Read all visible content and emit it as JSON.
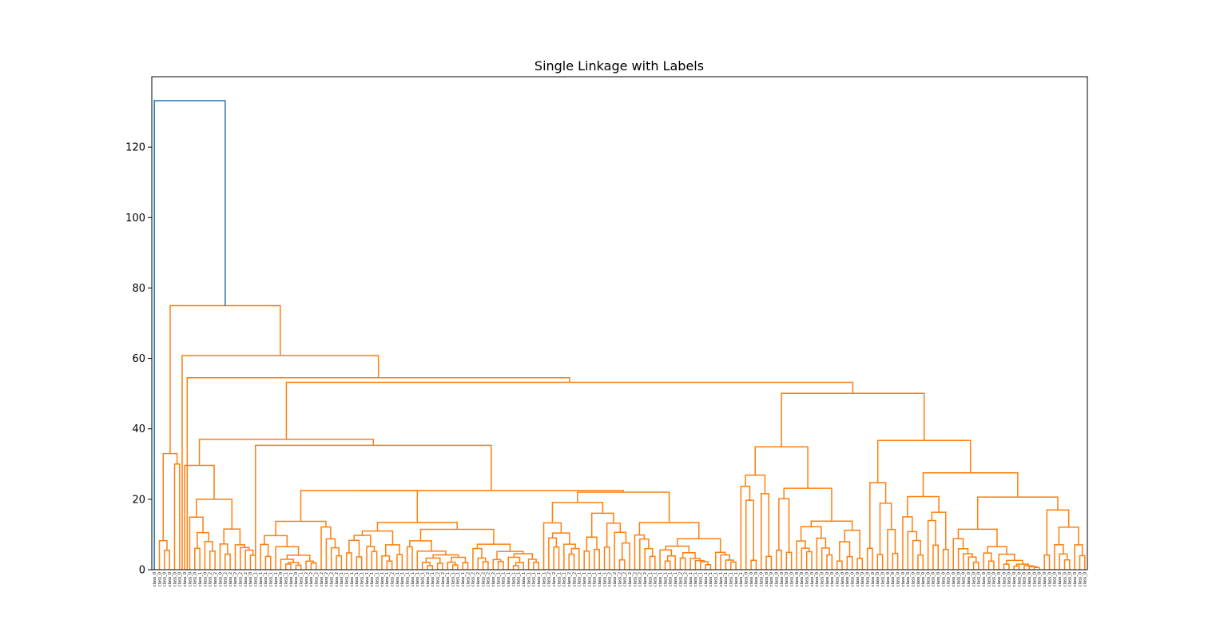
{
  "chart_data": {
    "type": "dendrogram",
    "title": "Single Linkage with Labels",
    "xlabel": "",
    "ylabel": "",
    "ylim": [
      0,
      140
    ],
    "yticks": [
      0,
      20,
      40,
      60,
      80,
      100,
      120
    ],
    "leaf_label_sequence": [
      "class_0",
      "class_0",
      "class_0",
      "class_0",
      "class_0",
      "class_0",
      "class_0",
      "class_0",
      "class_0",
      "class_1",
      "class_0",
      "class_2",
      "class_2",
      "class_0",
      "class_2",
      "class_2",
      "class_2",
      "class_2",
      "class_2",
      "class_0",
      "class_1",
      "class_1",
      "class_1",
      "class_1",
      "class_1",
      "class_0",
      "class_1",
      "class_1",
      "class_0",
      "class_1",
      "class_2",
      "class_2",
      "class_2",
      "class_2",
      "class_2",
      "class_2",
      "class_2",
      "class_1",
      "class_1",
      "class_1",
      "class_1",
      "class_1",
      "class_1",
      "class_1",
      "class_1",
      "class_1",
      "class_1",
      "class_2",
      "class_1",
      "class_1",
      "class_1",
      "class_1",
      "class_1",
      "class_1",
      "class_2",
      "class_1",
      "class_2",
      "class_2",
      "class_1",
      "class_1",
      "class_1",
      "class_1",
      "class_2",
      "class_2",
      "class_2",
      "class_2",
      "class_2",
      "class_2",
      "class_1",
      "class_1",
      "class_1",
      "class_1",
      "class_1",
      "class_1",
      "class_1",
      "class_1",
      "class_1",
      "class_1",
      "class_2",
      "class_2",
      "class_1",
      "class_1",
      "class_2",
      "class_2",
      "class_1",
      "class_1",
      "class_1",
      "class_1",
      "class_1",
      "class_1",
      "class_2",
      "class_2",
      "class_2",
      "class_2",
      "class_2",
      "class_2",
      "class_2",
      "class_2",
      "class_1",
      "class_1",
      "class_1",
      "class_1",
      "class_1",
      "class_1",
      "class_2",
      "class_2",
      "class_1",
      "class_1",
      "class_1",
      "class_1",
      "class_1",
      "class_1",
      "class_1",
      "class_1",
      "class_1",
      "class_1",
      "class_1",
      "class_0",
      "class_0",
      "class_0",
      "class_0",
      "class_0",
      "class_0",
      "class_0",
      "class_0",
      "class_0",
      "class_0",
      "class_0",
      "class_0",
      "class_0",
      "class_0",
      "class_0",
      "class_0",
      "class_0",
      "class_0",
      "class_0",
      "class_0",
      "class_0",
      "class_0",
      "class_0",
      "class_0",
      "class_0",
      "class_0",
      "class_0",
      "class_0",
      "class_0",
      "class_0",
      "class_0",
      "class_0",
      "class_0",
      "class_0",
      "class_0",
      "class_0",
      "class_0",
      "class_0",
      "class_0",
      "class_0",
      "class_0",
      "class_0",
      "class_0",
      "class_0",
      "class_0",
      "class_0",
      "class_0",
      "class_0",
      "class_0",
      "class_0",
      "class_0",
      "class_0",
      "class_0",
      "class_0",
      "class_0",
      "class_0",
      "class_0",
      "class_0",
      "class_0",
      "class_0",
      "class_0",
      "class_0",
      "class_0",
      "class_0",
      "class_0",
      "class_0",
      "class_0",
      "class_0"
    ],
    "colors": {
      "upper": "#1f77b4",
      "cluster": "#ff7f0e"
    },
    "top_merges": [
      {
        "height": 133.2,
        "color": "#1f77b4"
      },
      {
        "height": 75.0,
        "color": "#ff7f0e"
      },
      {
        "height": 60.8,
        "color": "#ff7f0e"
      },
      {
        "height": 54.5,
        "color": "#ff7f0e"
      },
      {
        "height": 53.2,
        "color": "#ff7f0e"
      },
      {
        "height": 50.1,
        "color": "#ff7f0e"
      },
      {
        "height": 37.0,
        "color": "#ff7f0e"
      },
      {
        "height": 36.7,
        "color": "#ff7f0e"
      },
      {
        "height": 35.3,
        "color": "#ff7f0e"
      },
      {
        "height": 34.9,
        "color": "#ff7f0e"
      },
      {
        "height": 33.0,
        "color": "#ff7f0e"
      },
      {
        "height": 31.4,
        "color": "#ff7f0e"
      },
      {
        "height": 29.6,
        "color": "#ff7f0e"
      }
    ]
  }
}
